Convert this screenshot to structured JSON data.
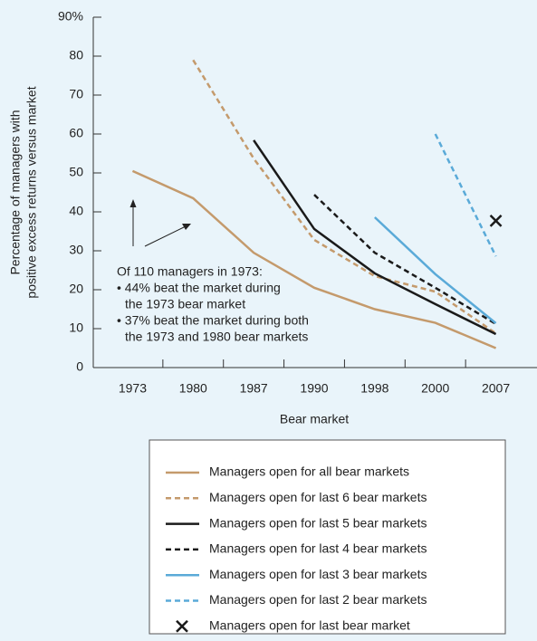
{
  "chart_data": {
    "type": "line",
    "ylabel": [
      "Percentage of managers with",
      "positive excess returns versus market"
    ],
    "xlabel": "Bear market",
    "categories": [
      "1973",
      "1980",
      "1987",
      "1990",
      "1998",
      "2000",
      "2007"
    ],
    "ylim": [
      0,
      90
    ],
    "yticks": [
      0,
      10,
      20,
      30,
      40,
      50,
      60,
      70,
      80,
      {
        "value": 90,
        "label": "90%"
      }
    ],
    "annotation": [
      "Of 110 managers in 1973:",
      "• 44% beat the market during",
      "the 1973 bear market",
      "• 37% beat the market during both",
      "the 1973 and 1980 bear markets"
    ],
    "series": [
      {
        "name": "Managers open for all bear markets",
        "color": "#c49a6c",
        "dash": false,
        "values": [
          50.5,
          43.5,
          29.5,
          20.5,
          15,
          11.5,
          5
        ]
      },
      {
        "name": "Managers open for last 6 bear markets",
        "color": "#c49a6c",
        "dash": true,
        "values": [
          null,
          79,
          53.7,
          32.8,
          23.5,
          19.5,
          8.8
        ]
      },
      {
        "name": "Managers open for last 5 bear markets",
        "color": "#1a1a1a",
        "dash": false,
        "values": [
          null,
          null,
          58.4,
          35.6,
          24.2,
          16.3,
          8.6
        ]
      },
      {
        "name": "Managers open for last 4 bear markets",
        "color": "#1a1a1a",
        "dash": true,
        "values": [
          null,
          null,
          null,
          44.4,
          29.5,
          20.5,
          11.2
        ]
      },
      {
        "name": "Managers open for last 3 bear markets",
        "color": "#5aaad8",
        "dash": false,
        "values": [
          null,
          null,
          null,
          null,
          38.6,
          24,
          11.4
        ]
      },
      {
        "name": "Managers open for last 2 bear markets",
        "color": "#5aaad8",
        "dash": true,
        "values": [
          null,
          null,
          null,
          null,
          null,
          60,
          28.6
        ]
      },
      {
        "name": "Managers open for last bear market",
        "color": "#1a1a1a",
        "marker": "x",
        "values": [
          null,
          null,
          null,
          null,
          null,
          null,
          37.7
        ]
      }
    ]
  }
}
